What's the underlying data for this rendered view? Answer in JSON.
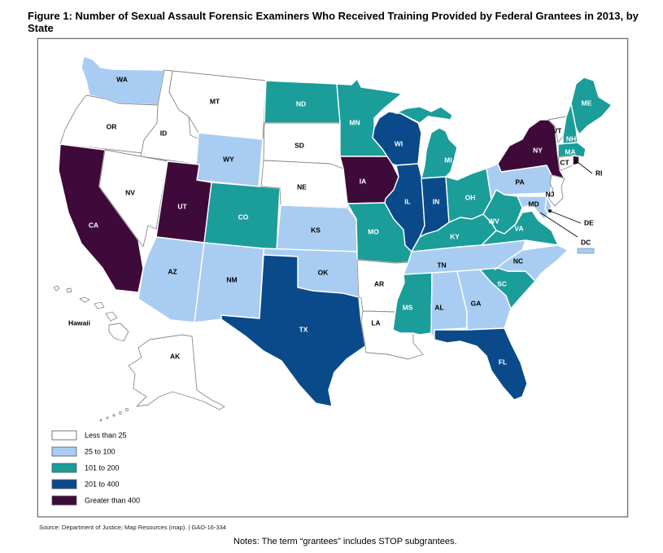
{
  "title": "Figure 1: Number of Sexual Assault Forensic Examiners Who Received Training Provided by Federal Grantees in 2013, by State",
  "source": "Source: Department of Justice; Map Resources (map).  |  GAO-16-334",
  "notes": "Notes: The term “grantees” includes STOP subgrantees.",
  "legend": [
    {
      "label": "Less than 25",
      "color": "#ffffff"
    },
    {
      "label": "25 to 100",
      "color": "#a9cdf2"
    },
    {
      "label": "101 to 200",
      "color": "#1b9d9a"
    },
    {
      "label": "201 to 400",
      "color": "#0a4a8b"
    },
    {
      "label": "Greater than 400",
      "color": "#3e0a3a"
    }
  ],
  "states": [
    {
      "id": "WA",
      "category": 1
    },
    {
      "id": "OR",
      "category": 0
    },
    {
      "id": "CA",
      "category": 4
    },
    {
      "id": "ID",
      "category": 0
    },
    {
      "id": "NV",
      "category": 0
    },
    {
      "id": "MT",
      "category": 0
    },
    {
      "id": "WY",
      "category": 1
    },
    {
      "id": "UT",
      "category": 4
    },
    {
      "id": "AZ",
      "category": 1
    },
    {
      "id": "CO",
      "category": 2
    },
    {
      "id": "NM",
      "category": 1
    },
    {
      "id": "ND",
      "category": 2
    },
    {
      "id": "SD",
      "category": 0
    },
    {
      "id": "NE",
      "category": 0
    },
    {
      "id": "KS",
      "category": 1
    },
    {
      "id": "OK",
      "category": 1
    },
    {
      "id": "TX",
      "category": 3
    },
    {
      "id": "MN",
      "category": 2
    },
    {
      "id": "IA",
      "category": 4
    },
    {
      "id": "MO",
      "category": 2
    },
    {
      "id": "AR",
      "category": 0
    },
    {
      "id": "LA",
      "category": 0
    },
    {
      "id": "WI",
      "category": 3
    },
    {
      "id": "IL",
      "category": 3
    },
    {
      "id": "IN",
      "category": 3
    },
    {
      "id": "MI",
      "category": 2
    },
    {
      "id": "OH",
      "category": 2
    },
    {
      "id": "KY",
      "category": 2
    },
    {
      "id": "TN",
      "category": 1
    },
    {
      "id": "MS",
      "category": 2
    },
    {
      "id": "AL",
      "category": 1
    },
    {
      "id": "GA",
      "category": 1
    },
    {
      "id": "FL",
      "category": 3
    },
    {
      "id": "SC",
      "category": 2
    },
    {
      "id": "NC",
      "category": 1
    },
    {
      "id": "VA",
      "category": 2
    },
    {
      "id": "WV",
      "category": 2
    },
    {
      "id": "PA",
      "category": 1
    },
    {
      "id": "NY",
      "category": 4
    },
    {
      "id": "VT",
      "category": 0
    },
    {
      "id": "NH",
      "category": 2
    },
    {
      "id": "ME",
      "category": 2
    },
    {
      "id": "MA",
      "category": 2
    },
    {
      "id": "CT",
      "category": 0
    },
    {
      "id": "RI",
      "category": 4
    },
    {
      "id": "NJ",
      "category": 0
    },
    {
      "id": "DE",
      "category": 1
    },
    {
      "id": "MD",
      "category": 1
    },
    {
      "id": "DC",
      "category": 1
    },
    {
      "id": "AK",
      "category": 0
    },
    {
      "id": "HI",
      "category": 0
    }
  ],
  "labels": {
    "Hawaii": "Hawaii",
    "AK": "AK",
    "RI": "RI",
    "DE": "DE",
    "DC": "DC",
    "MD": "MD",
    "NJ": "NJ",
    "CT": "CT",
    "VT": "VT"
  }
}
